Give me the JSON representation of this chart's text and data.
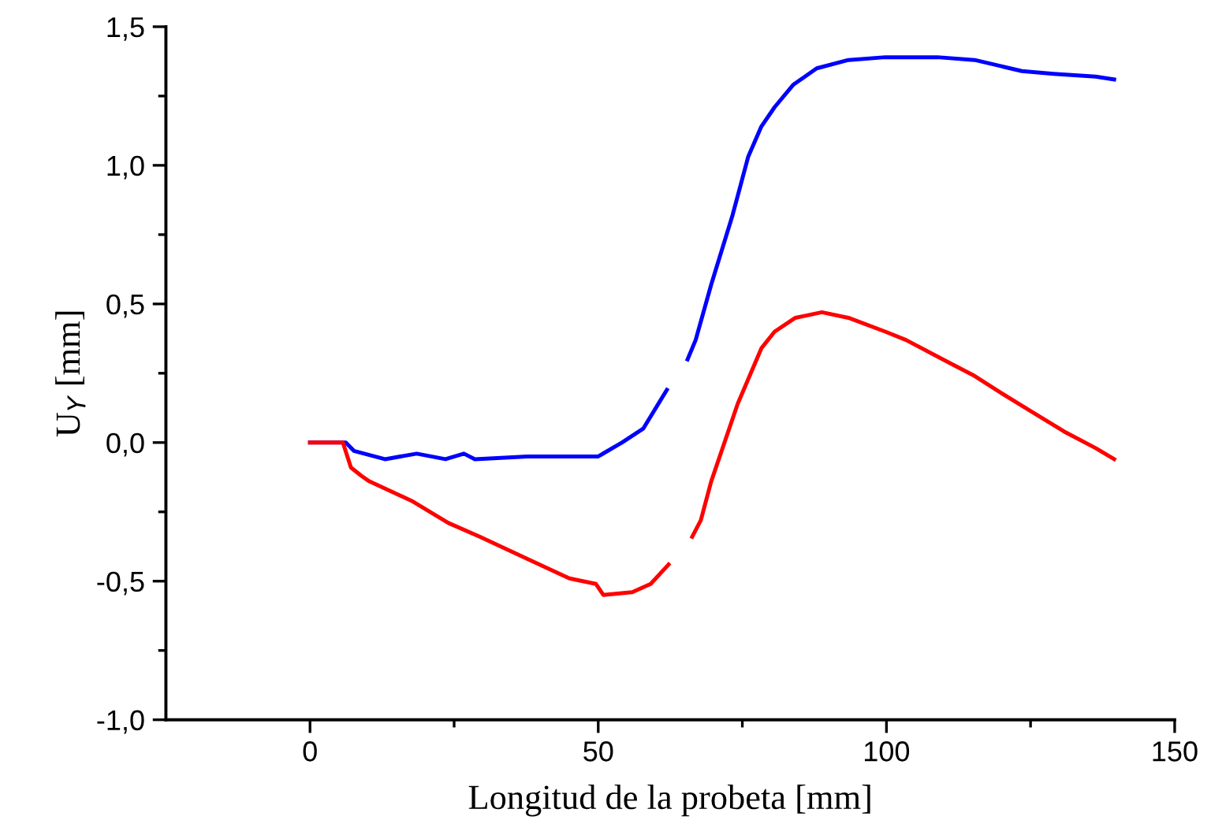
{
  "chart_data": {
    "type": "line",
    "xlabel": "Longitud de la probeta [mm]",
    "ylabel": "U$_{Y}$ [mm]",
    "xlim": [
      -25,
      150
    ],
    "xticks": [
      0,
      50,
      100,
      150
    ],
    "ylim": [
      -1.0,
      1.5
    ],
    "yticks": [
      {
        "value": -1.0,
        "label": "-1,0"
      },
      {
        "value": -0.5,
        "label": "-0,5"
      },
      {
        "value": 0.0,
        "label": "0,0"
      },
      {
        "value": 0.5,
        "label": "0,5"
      },
      {
        "value": 1.0,
        "label": "1,0"
      },
      {
        "value": 1.5,
        "label": "1,5"
      }
    ],
    "grid": false,
    "legend": false,
    "marker": "none",
    "line_style": "solid",
    "series": [
      {
        "color": "#0000ff",
        "x": [
          0,
          6.2,
          7.6,
          13.0,
          18.5,
          23.5,
          26.7,
          28.6,
          37.7,
          45.9,
          50.0,
          54.1,
          57.8,
          61.9,
          63.7,
          65.5,
          66.9,
          69.6,
          73.3,
          76.0,
          78.3,
          80.6,
          83.8,
          87.9,
          93.4,
          99.8,
          108.9,
          115.3,
          123.5,
          129.0,
          136.3,
          139.5
        ],
        "values": [
          0,
          0.0,
          -0.03,
          -0.06,
          -0.04,
          -0.06,
          -0.04,
          -0.06,
          -0.05,
          -0.05,
          -0.05,
          0.0,
          0.05,
          0.19,
          null,
          0.3,
          0.37,
          0.57,
          0.82,
          1.03,
          1.14,
          1.21,
          1.29,
          1.35,
          1.38,
          1.39,
          1.39,
          1.38,
          1.34,
          1.33,
          1.32,
          1.31
        ]
      },
      {
        "color": "#ff0000",
        "x": [
          0,
          5.7,
          7.1,
          8.9,
          10.3,
          17.6,
          24.0,
          29.5,
          37.7,
          45.0,
          49.6,
          50.9,
          55.9,
          59.1,
          62.2,
          64.2,
          66.3,
          67.8,
          69.6,
          74.2,
          78.3,
          80.6,
          84.2,
          88.8,
          93.4,
          99.8,
          103.4,
          110.7,
          115.3,
          119.8,
          125.3,
          130.8,
          136.3,
          139.5
        ],
        "values": [
          0,
          0,
          -0.09,
          -0.12,
          -0.14,
          -0.21,
          -0.29,
          -0.34,
          -0.42,
          -0.49,
          -0.51,
          -0.55,
          -0.54,
          -0.51,
          -0.44,
          null,
          -0.34,
          -0.28,
          -0.14,
          0.14,
          0.34,
          0.4,
          0.45,
          0.47,
          0.45,
          0.4,
          0.37,
          0.29,
          0.24,
          0.18,
          0.11,
          0.04,
          -0.02,
          -0.06
        ]
      }
    ]
  }
}
